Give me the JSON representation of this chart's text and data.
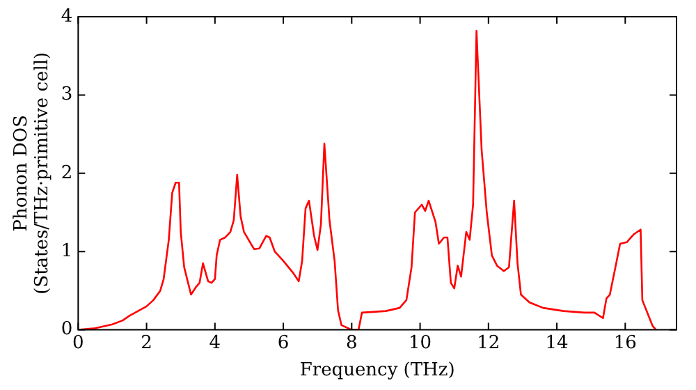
{
  "chart_data": {
    "type": "line",
    "xlabel": "Frequency (THz)",
    "ylabel": "Phonon DOS\n(States/THz·primitive cell)",
    "x": [
      0,
      0.5,
      1,
      1.3,
      1.5,
      2,
      2.2,
      2.4,
      2.5,
      2.65,
      2.75,
      2.85,
      2.95,
      3.0,
      3.1,
      3.3,
      3.45,
      3.55,
      3.65,
      3.8,
      3.9,
      4.0,
      4.05,
      4.15,
      4.3,
      4.45,
      4.55,
      4.65,
      4.75,
      4.85,
      5.05,
      5.15,
      5.3,
      5.5,
      5.6,
      5.75,
      6.0,
      6.3,
      6.45,
      6.55,
      6.65,
      6.75,
      6.9,
      7.0,
      7.1,
      7.2,
      7.35,
      7.5,
      7.6,
      7.7,
      7.9,
      8.0,
      8.2,
      8.3,
      9.0,
      9.4,
      9.6,
      9.75,
      9.85,
      10.05,
      10.15,
      10.25,
      10.45,
      10.55,
      10.7,
      10.8,
      10.9,
      11.0,
      11.1,
      11.2,
      11.35,
      11.45,
      11.55,
      11.65,
      11.8,
      11.95,
      12.1,
      12.25,
      12.45,
      12.6,
      12.75,
      12.85,
      12.95,
      13.2,
      13.6,
      14.2,
      14.8,
      15.1,
      15.35,
      15.45,
      15.55,
      15.75,
      15.85,
      16.05,
      16.25,
      16.45,
      16.5,
      16.8,
      16.9
    ],
    "series": [
      {
        "color": "#ff0000",
        "values": [
          0,
          0.02,
          0.07,
          0.12,
          0.18,
          0.3,
          0.38,
          0.5,
          0.65,
          1.15,
          1.75,
          1.88,
          1.88,
          1.25,
          0.8,
          0.45,
          0.55,
          0.6,
          0.85,
          0.62,
          0.6,
          0.65,
          0.95,
          1.15,
          1.18,
          1.25,
          1.4,
          1.98,
          1.45,
          1.25,
          1.1,
          1.03,
          1.04,
          1.2,
          1.18,
          1.0,
          0.88,
          0.72,
          0.62,
          0.88,
          1.55,
          1.65,
          1.2,
          1.02,
          1.35,
          2.38,
          1.4,
          0.88,
          0.25,
          0.06,
          0.02,
          0,
          0,
          0.22,
          0.24,
          0.28,
          0.38,
          0.8,
          1.5,
          1.6,
          1.52,
          1.65,
          1.38,
          1.1,
          1.18,
          1.18,
          0.6,
          0.53,
          0.82,
          0.68,
          1.25,
          1.15,
          1.6,
          3.82,
          2.3,
          1.5,
          0.95,
          0.82,
          0.75,
          0.8,
          1.65,
          0.85,
          0.45,
          0.35,
          0.28,
          0.24,
          0.22,
          0.22,
          0.15,
          0.4,
          0.45,
          0.88,
          1.1,
          1.12,
          1.22,
          1.28,
          0.38,
          0.05,
          0
        ]
      }
    ],
    "xlim": [
      0,
      17.5
    ],
    "ylim": [
      0,
      4
    ],
    "xticks": [
      0,
      2,
      4,
      6,
      8,
      10,
      12,
      14,
      16
    ],
    "yticks": [
      0,
      1,
      2,
      3,
      4
    ],
    "grid": false,
    "legend": false,
    "marker": "none",
    "line_style": "solid"
  }
}
